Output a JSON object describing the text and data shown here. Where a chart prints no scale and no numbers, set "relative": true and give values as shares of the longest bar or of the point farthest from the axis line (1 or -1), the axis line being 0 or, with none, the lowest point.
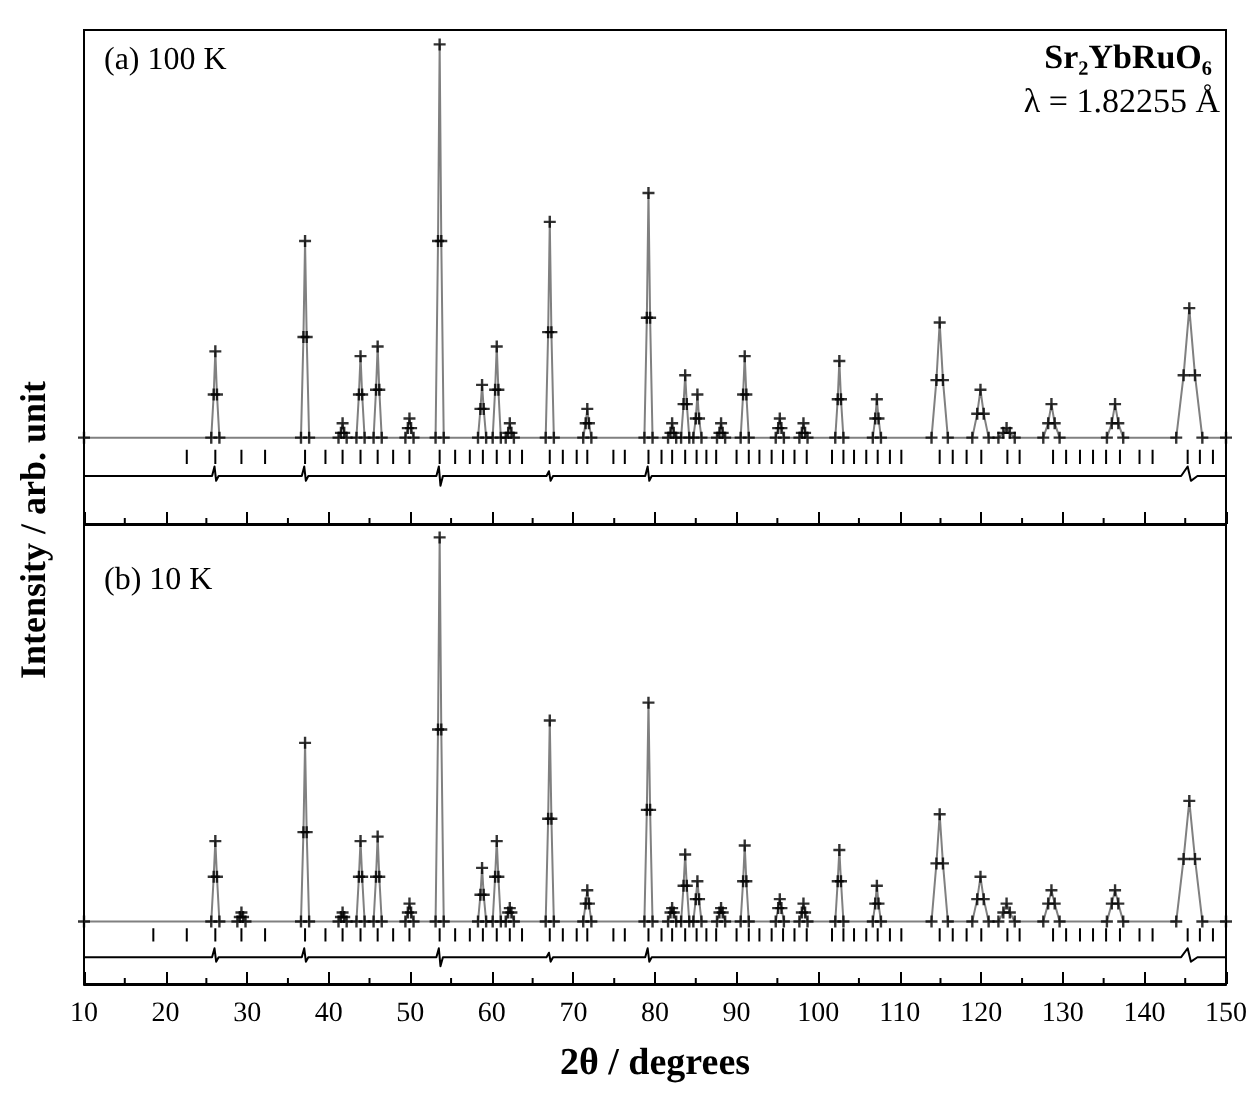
{
  "chart_data": [
    {
      "type": "line",
      "relative": true,
      "tick_labels": false,
      "ylabel": "Intensity / arb. unit",
      "annotations": [
        "(a) 100 K",
        "Sr₂YbRuO₆",
        "λ = 1.82255 Å"
      ],
      "xlim": [
        10,
        150
      ],
      "xticks": [
        10,
        20,
        30,
        40,
        50,
        60,
        70,
        80,
        90,
        100,
        110,
        120,
        130,
        140,
        150
      ],
      "x": [
        10,
        25.6,
        25.9,
        26.1,
        26.3,
        26.6,
        36.6,
        36.9,
        37.1,
        37.3,
        37.6,
        41.2,
        41.5,
        41.7,
        41.9,
        42.2,
        43.4,
        43.7,
        43.9,
        44.1,
        44.4,
        45.5,
        45.8,
        46.0,
        46.2,
        46.5,
        49.4,
        49.7,
        49.9,
        50.1,
        50.4,
        53.1,
        53.4,
        53.6,
        53.8,
        54.1,
        58.3,
        58.6,
        58.8,
        59.0,
        59.3,
        60.1,
        60.4,
        60.6,
        60.8,
        61.1,
        61.7,
        62.0,
        62.2,
        62.4,
        62.7,
        66.6,
        66.9,
        67.1,
        67.3,
        67.6,
        71.2,
        71.5,
        71.7,
        71.9,
        72.2,
        78.7,
        79.0,
        79.2,
        79.4,
        79.7,
        81.6,
        81.9,
        82.1,
        82.3,
        82.6,
        83.2,
        83.5,
        83.7,
        83.9,
        84.2,
        84.7,
        85.0,
        85.2,
        85.4,
        85.7,
        87.6,
        87.9,
        88.1,
        88.3,
        88.6,
        90.5,
        90.8,
        91.0,
        91.2,
        91.5,
        94.8,
        95.1,
        95.3,
        95.5,
        95.8,
        97.7,
        98.0,
        98.2,
        98.4,
        98.7,
        102.1,
        102.4,
        102.6,
        102.8,
        103.1,
        106.7,
        107.0,
        107.2,
        107.4,
        107.7,
        113.9,
        114.5,
        114.9,
        115.3,
        115.9,
        118.9,
        119.5,
        119.9,
        120.3,
        120.9,
        122.1,
        122.7,
        123.1,
        123.5,
        124.1,
        127.6,
        128.2,
        128.6,
        129.0,
        129.6,
        135.4,
        136.0,
        136.4,
        136.8,
        137.4,
        143.9,
        144.8,
        145.5,
        146.2,
        147.1,
        150
      ],
      "series": [
        {
          "type": "scatter",
          "marker": "cross",
          "color": "#000000",
          "values": [
            0.18,
            0.18,
            0.27,
            0.36,
            0.27,
            0.18,
            0.18,
            0.39,
            0.59,
            0.39,
            0.18,
            0.18,
            0.19,
            0.21,
            0.19,
            0.18,
            0.18,
            0.27,
            0.35,
            0.27,
            0.18,
            0.18,
            0.28,
            0.37,
            0.28,
            0.18,
            0.18,
            0.2,
            0.22,
            0.2,
            0.18,
            0.18,
            0.59,
            1,
            0.59,
            0.18,
            0.18,
            0.24,
            0.29,
            0.24,
            0.18,
            0.18,
            0.28,
            0.37,
            0.28,
            0.18,
            0.18,
            0.19,
            0.21,
            0.19,
            0.18,
            0.18,
            0.4,
            0.63,
            0.4,
            0.18,
            0.18,
            0.21,
            0.24,
            0.21,
            0.18,
            0.18,
            0.43,
            0.69,
            0.43,
            0.18,
            0.18,
            0.19,
            0.21,
            0.19,
            0.18,
            0.18,
            0.25,
            0.31,
            0.25,
            0.18,
            0.18,
            0.22,
            0.27,
            0.22,
            0.18,
            0.18,
            0.19,
            0.21,
            0.19,
            0.18,
            0.18,
            0.27,
            0.35,
            0.27,
            0.18,
            0.18,
            0.2,
            0.22,
            0.2,
            0.18,
            0.18,
            0.19,
            0.21,
            0.19,
            0.18,
            0.18,
            0.26,
            0.34,
            0.26,
            0.18,
            0.18,
            0.22,
            0.26,
            0.22,
            0.18,
            0.18,
            0.3,
            0.42,
            0.3,
            0.18,
            0.18,
            0.23,
            0.28,
            0.23,
            0.18,
            0.18,
            0.19,
            0.2,
            0.19,
            0.18,
            0.18,
            0.21,
            0.25,
            0.21,
            0.18,
            0.18,
            0.21,
            0.25,
            0.21,
            0.18,
            0.18,
            0.31,
            0.45,
            0.31,
            0.18,
            0.18
          ]
        },
        {
          "marker": "none",
          "color": "#808080",
          "values": [
            0.18,
            0.18,
            0.27,
            0.36,
            0.27,
            0.18,
            0.18,
            0.39,
            0.59,
            0.39,
            0.18,
            0.18,
            0.19,
            0.21,
            0.19,
            0.18,
            0.18,
            0.27,
            0.35,
            0.27,
            0.18,
            0.18,
            0.28,
            0.37,
            0.28,
            0.18,
            0.18,
            0.2,
            0.22,
            0.2,
            0.18,
            0.18,
            0.59,
            1,
            0.59,
            0.18,
            0.18,
            0.24,
            0.29,
            0.24,
            0.18,
            0.18,
            0.28,
            0.37,
            0.28,
            0.18,
            0.18,
            0.19,
            0.21,
            0.19,
            0.18,
            0.18,
            0.4,
            0.63,
            0.4,
            0.18,
            0.18,
            0.21,
            0.24,
            0.21,
            0.18,
            0.18,
            0.43,
            0.69,
            0.43,
            0.18,
            0.18,
            0.19,
            0.21,
            0.19,
            0.18,
            0.18,
            0.25,
            0.31,
            0.25,
            0.18,
            0.18,
            0.22,
            0.27,
            0.22,
            0.18,
            0.18,
            0.19,
            0.21,
            0.19,
            0.18,
            0.18,
            0.27,
            0.35,
            0.27,
            0.18,
            0.18,
            0.2,
            0.22,
            0.2,
            0.18,
            0.18,
            0.19,
            0.21,
            0.19,
            0.18,
            0.18,
            0.26,
            0.34,
            0.26,
            0.18,
            0.18,
            0.22,
            0.26,
            0.22,
            0.18,
            0.18,
            0.3,
            0.42,
            0.3,
            0.18,
            0.18,
            0.23,
            0.28,
            0.23,
            0.18,
            0.18,
            0.19,
            0.2,
            0.19,
            0.18,
            0.18,
            0.21,
            0.25,
            0.21,
            0.18,
            0.18,
            0.21,
            0.25,
            0.21,
            0.18,
            0.18,
            0.31,
            0.45,
            0.31,
            0.18,
            0.18
          ]
        },
        {
          "type": "line",
          "marker": "none",
          "color": "#000000",
          "x": [
            10,
            25.7,
            26.0,
            26.2,
            26.5,
            36.7,
            37.0,
            37.2,
            37.5,
            53.2,
            53.5,
            53.7,
            54.0,
            66.7,
            67.0,
            67.2,
            67.5,
            78.8,
            79.1,
            79.3,
            79.6,
            144.5,
            145.3,
            145.7,
            146.5,
            150
          ],
          "values": [
            0.1,
            0.1,
            0.12,
            0.09,
            0.1,
            0.1,
            0.12,
            0.09,
            0.1,
            0.1,
            0.12,
            0.08,
            0.1,
            0.1,
            0.11,
            0.09,
            0.1,
            0.1,
            0.12,
            0.09,
            0.1,
            0.1,
            0.12,
            0.09,
            0.1,
            0.1
          ]
        },
        {
          "type": "line",
          "marker": "none",
          "color": "#000000",
          "x": [
            22.6,
            22.6,
            null,
            26.1,
            26.1,
            null,
            29.3,
            29.3,
            null,
            32.2,
            32.2,
            null,
            37.1,
            37.1,
            null,
            39.6,
            39.6,
            null,
            41.7,
            41.7,
            null,
            43.9,
            43.9,
            null,
            46.0,
            46.0,
            null,
            47.9,
            47.9,
            null,
            49.9,
            49.9,
            null,
            53.6,
            53.6,
            null,
            55.5,
            55.5,
            null,
            57.3,
            57.3,
            null,
            58.9,
            58.9,
            null,
            60.6,
            60.6,
            null,
            62.2,
            62.2,
            null,
            63.7,
            63.7,
            null,
            67.1,
            67.1,
            null,
            68.7,
            68.7,
            null,
            70.4,
            70.4,
            null,
            71.7,
            71.7,
            null,
            74.9,
            74.9,
            null,
            76.3,
            76.3,
            null,
            79.2,
            79.2,
            null,
            80.8,
            80.8,
            null,
            82.1,
            82.1,
            null,
            83.7,
            83.7,
            null,
            85.1,
            85.1,
            null,
            86.3,
            86.3,
            null,
            87.5,
            87.5,
            null,
            90.0,
            90.0,
            null,
            91.5,
            91.5,
            null,
            92.8,
            92.8,
            null,
            94.3,
            94.3,
            null,
            95.7,
            95.7,
            null,
            97.1,
            97.1,
            null,
            98.6,
            98.6,
            null,
            101.7,
            101.7,
            null,
            103.1,
            103.1,
            null,
            104.4,
            104.4,
            null,
            105.9,
            105.9,
            null,
            107.3,
            107.3,
            null,
            108.8,
            108.8,
            null,
            110.2,
            110.2,
            null,
            114.9,
            114.9,
            null,
            116.5,
            116.5,
            null,
            118.2,
            118.2,
            null,
            120.0,
            120.0,
            null,
            123.2,
            123.2,
            null,
            124.7,
            124.7,
            null,
            128.8,
            128.8,
            null,
            130.4,
            130.4,
            null,
            132.1,
            132.1,
            null,
            133.7,
            133.7,
            null,
            135.3,
            135.3,
            null,
            137.0,
            137.0,
            null,
            139.4,
            139.4,
            null,
            141.0,
            141.0,
            null,
            145.3,
            145.3,
            null,
            146.8,
            146.8,
            null,
            148.4,
            148.4,
            null
          ],
          "values": [
            0.125,
            0.155,
            null,
            0.125,
            0.155,
            null,
            0.125,
            0.155,
            null,
            0.125,
            0.155,
            null,
            0.125,
            0.155,
            null,
            0.125,
            0.155,
            null,
            0.125,
            0.155,
            null,
            0.125,
            0.155,
            null,
            0.125,
            0.155,
            null,
            0.125,
            0.155,
            null,
            0.125,
            0.155,
            null,
            0.125,
            0.155,
            null,
            0.125,
            0.155,
            null,
            0.125,
            0.155,
            null,
            0.125,
            0.155,
            null,
            0.125,
            0.155,
            null,
            0.125,
            0.155,
            null,
            0.125,
            0.155,
            null,
            0.125,
            0.155,
            null,
            0.125,
            0.155,
            null,
            0.125,
            0.155,
            null,
            0.125,
            0.155,
            null,
            0.125,
            0.155,
            null,
            0.125,
            0.155,
            null,
            0.125,
            0.155,
            null,
            0.125,
            0.155,
            null,
            0.125,
            0.155,
            null,
            0.125,
            0.155,
            null,
            0.125,
            0.155,
            null,
            0.125,
            0.155,
            null,
            0.125,
            0.155,
            null,
            0.125,
            0.155,
            null,
            0.125,
            0.155,
            null,
            0.125,
            0.155,
            null,
            0.125,
            0.155,
            null,
            0.125,
            0.155,
            null,
            0.125,
            0.155,
            null,
            0.125,
            0.155,
            null,
            0.125,
            0.155,
            null,
            0.125,
            0.155,
            null,
            0.125,
            0.155,
            null,
            0.125,
            0.155,
            null,
            0.125,
            0.155,
            null,
            0.125,
            0.155,
            null,
            0.125,
            0.155,
            null,
            0.125,
            0.155,
            null,
            0.125,
            0.155,
            null,
            0.125,
            0.155,
            null,
            0.125,
            0.155,
            null,
            0.125,
            0.155,
            null,
            0.125,
            0.155,
            null,
            0.125,
            0.155,
            null,
            0.125,
            0.155,
            null,
            0.125,
            0.155,
            null,
            0.125,
            0.155,
            null,
            0.125,
            0.155,
            null,
            0.125,
            0.155,
            null,
            0.125,
            0.155,
            null,
            0.125,
            0.155,
            null,
            0.125,
            0.155,
            null,
            0.125,
            0.155,
            null,
            0.125,
            0.155,
            null
          ]
        }
      ]
    },
    {
      "type": "line",
      "relative": true,
      "tick_labels": "x",
      "xlabel": "2θ / degrees",
      "annotations": [
        "(b) 10 K"
      ],
      "xlim": [
        10,
        150
      ],
      "xticks": [
        10,
        20,
        30,
        40,
        50,
        60,
        70,
        80,
        90,
        100,
        110,
        120,
        130,
        140,
        150
      ],
      "x": [
        10,
        25.6,
        25.9,
        26.1,
        26.3,
        26.6,
        28.8,
        29.1,
        29.3,
        29.5,
        29.8,
        36.6,
        36.9,
        37.1,
        37.3,
        37.6,
        41.2,
        41.5,
        41.7,
        41.9,
        42.2,
        43.4,
        43.7,
        43.9,
        44.1,
        44.4,
        45.5,
        45.8,
        46.0,
        46.2,
        46.5,
        49.4,
        49.7,
        49.9,
        50.1,
        50.4,
        53.1,
        53.4,
        53.6,
        53.8,
        54.1,
        58.3,
        58.6,
        58.8,
        59.0,
        59.3,
        60.1,
        60.4,
        60.6,
        60.8,
        61.1,
        61.7,
        62.0,
        62.2,
        62.4,
        62.7,
        66.6,
        66.9,
        67.1,
        67.3,
        67.6,
        71.2,
        71.5,
        71.7,
        71.9,
        72.2,
        78.7,
        79.0,
        79.2,
        79.4,
        79.7,
        81.6,
        81.9,
        82.1,
        82.3,
        82.6,
        83.2,
        83.5,
        83.7,
        83.9,
        84.2,
        84.7,
        85.0,
        85.2,
        85.4,
        85.7,
        87.6,
        87.9,
        88.1,
        88.3,
        88.6,
        90.5,
        90.8,
        91.0,
        91.2,
        91.5,
        94.8,
        95.1,
        95.3,
        95.5,
        95.8,
        97.7,
        98.0,
        98.2,
        98.4,
        98.7,
        102.1,
        102.4,
        102.6,
        102.8,
        103.1,
        106.7,
        107.0,
        107.2,
        107.4,
        107.7,
        113.9,
        114.5,
        114.9,
        115.3,
        115.9,
        118.9,
        119.5,
        119.9,
        120.3,
        120.9,
        122.1,
        122.7,
        123.1,
        123.5,
        124.1,
        127.6,
        128.2,
        128.6,
        129.0,
        129.6,
        135.4,
        136.0,
        136.4,
        136.8,
        137.4,
        143.9,
        144.8,
        145.5,
        146.2,
        147.1,
        150
      ],
      "series": [
        {
          "type": "scatter",
          "marker": "cross",
          "color": "#000000",
          "values": [
            0.14,
            0.14,
            0.24,
            0.32,
            0.24,
            0.14,
            0.14,
            0.15,
            0.16,
            0.15,
            0.14,
            0.14,
            0.34,
            0.54,
            0.34,
            0.14,
            0.14,
            0.15,
            0.16,
            0.15,
            0.14,
            0.14,
            0.24,
            0.32,
            0.24,
            0.14,
            0.14,
            0.24,
            0.33,
            0.24,
            0.14,
            0.14,
            0.16,
            0.18,
            0.16,
            0.14,
            0.14,
            0.57,
            1,
            0.57,
            0.14,
            0.14,
            0.2,
            0.26,
            0.2,
            0.14,
            0.14,
            0.24,
            0.32,
            0.24,
            0.14,
            0.14,
            0.16,
            0.17,
            0.16,
            0.14,
            0.14,
            0.37,
            0.59,
            0.37,
            0.14,
            0.14,
            0.18,
            0.21,
            0.18,
            0.14,
            0.14,
            0.39,
            0.63,
            0.39,
            0.14,
            0.14,
            0.16,
            0.17,
            0.16,
            0.14,
            0.14,
            0.22,
            0.29,
            0.22,
            0.14,
            0.14,
            0.19,
            0.23,
            0.19,
            0.14,
            0.14,
            0.16,
            0.17,
            0.16,
            0.14,
            0.14,
            0.23,
            0.31,
            0.23,
            0.14,
            0.14,
            0.17,
            0.19,
            0.17,
            0.14,
            0.14,
            0.16,
            0.18,
            0.16,
            0.14,
            0.14,
            0.23,
            0.3,
            0.23,
            0.14,
            0.14,
            0.18,
            0.22,
            0.18,
            0.14,
            0.14,
            0.27,
            0.38,
            0.27,
            0.14,
            0.14,
            0.19,
            0.24,
            0.19,
            0.14,
            0.14,
            0.16,
            0.18,
            0.16,
            0.14,
            0.14,
            0.18,
            0.21,
            0.18,
            0.14,
            0.14,
            0.18,
            0.21,
            0.18,
            0.14,
            0.14,
            0.28,
            0.41,
            0.28,
            0.14,
            0.14
          ]
        },
        {
          "marker": "none",
          "color": "#808080",
          "values": [
            0.14,
            0.14,
            0.24,
            0.32,
            0.24,
            0.14,
            0.14,
            0.15,
            0.16,
            0.15,
            0.14,
            0.14,
            0.34,
            0.54,
            0.34,
            0.14,
            0.14,
            0.15,
            0.16,
            0.15,
            0.14,
            0.14,
            0.24,
            0.32,
            0.24,
            0.14,
            0.14,
            0.24,
            0.33,
            0.24,
            0.14,
            0.14,
            0.16,
            0.18,
            0.16,
            0.14,
            0.14,
            0.57,
            1,
            0.57,
            0.14,
            0.14,
            0.2,
            0.26,
            0.2,
            0.14,
            0.14,
            0.24,
            0.32,
            0.24,
            0.14,
            0.14,
            0.16,
            0.17,
            0.16,
            0.14,
            0.14,
            0.37,
            0.59,
            0.37,
            0.14,
            0.14,
            0.18,
            0.21,
            0.18,
            0.14,
            0.14,
            0.39,
            0.63,
            0.39,
            0.14,
            0.14,
            0.16,
            0.17,
            0.16,
            0.14,
            0.14,
            0.22,
            0.29,
            0.22,
            0.14,
            0.14,
            0.19,
            0.23,
            0.19,
            0.14,
            0.14,
            0.16,
            0.17,
            0.16,
            0.14,
            0.14,
            0.23,
            0.31,
            0.23,
            0.14,
            0.14,
            0.17,
            0.19,
            0.17,
            0.14,
            0.14,
            0.16,
            0.18,
            0.16,
            0.14,
            0.14,
            0.23,
            0.3,
            0.23,
            0.14,
            0.14,
            0.18,
            0.22,
            0.18,
            0.14,
            0.14,
            0.27,
            0.38,
            0.27,
            0.14,
            0.14,
            0.19,
            0.24,
            0.19,
            0.14,
            0.14,
            0.16,
            0.18,
            0.16,
            0.14,
            0.14,
            0.18,
            0.21,
            0.18,
            0.14,
            0.14,
            0.18,
            0.21,
            0.18,
            0.14,
            0.14,
            0.28,
            0.41,
            0.28,
            0.14,
            0.14
          ]
        },
        {
          "type": "line",
          "marker": "none",
          "color": "#000000",
          "x": [
            10,
            25.7,
            26.0,
            26.2,
            26.5,
            36.7,
            37.0,
            37.2,
            37.5,
            53.2,
            53.5,
            53.7,
            54.0,
            66.7,
            67.0,
            67.2,
            67.5,
            78.8,
            79.1,
            79.3,
            79.6,
            144.5,
            145.3,
            145.7,
            146.5,
            150
          ],
          "values": [
            0.06,
            0.06,
            0.08,
            0.05,
            0.06,
            0.06,
            0.08,
            0.05,
            0.06,
            0.06,
            0.08,
            0.04,
            0.06,
            0.06,
            0.07,
            0.05,
            0.06,
            0.06,
            0.08,
            0.05,
            0.06,
            0.06,
            0.08,
            0.05,
            0.06,
            0.06
          ]
        },
        {
          "type": "line",
          "marker": "none",
          "color": "#000000",
          "x": [
            18.5,
            18.5,
            null,
            22.6,
            22.6,
            null,
            26.1,
            26.1,
            null,
            29.3,
            29.3,
            null,
            32.2,
            32.2,
            null,
            37.1,
            37.1,
            null,
            39.6,
            39.6,
            null,
            41.7,
            41.7,
            null,
            43.9,
            43.9,
            null,
            46.0,
            46.0,
            null,
            47.9,
            47.9,
            null,
            49.9,
            49.9,
            null,
            53.6,
            53.6,
            null,
            55.5,
            55.5,
            null,
            57.3,
            57.3,
            null,
            58.9,
            58.9,
            null,
            60.6,
            60.6,
            null,
            62.2,
            62.2,
            null,
            63.7,
            63.7,
            null,
            67.1,
            67.1,
            null,
            68.7,
            68.7,
            null,
            70.4,
            70.4,
            null,
            71.7,
            71.7,
            null,
            74.9,
            74.9,
            null,
            76.3,
            76.3,
            null,
            79.2,
            79.2,
            null,
            80.8,
            80.8,
            null,
            82.1,
            82.1,
            null,
            83.7,
            83.7,
            null,
            85.1,
            85.1,
            null,
            86.3,
            86.3,
            null,
            87.5,
            87.5,
            null,
            90.0,
            90.0,
            null,
            91.5,
            91.5,
            null,
            92.8,
            92.8,
            null,
            94.3,
            94.3,
            null,
            95.7,
            95.7,
            null,
            97.1,
            97.1,
            null,
            98.6,
            98.6,
            null,
            101.7,
            101.7,
            null,
            103.1,
            103.1,
            null,
            104.4,
            104.4,
            null,
            105.9,
            105.9,
            null,
            107.3,
            107.3,
            null,
            108.8,
            108.8,
            null,
            110.2,
            110.2,
            null,
            114.9,
            114.9,
            null,
            116.5,
            116.5,
            null,
            118.2,
            118.2,
            null,
            120.0,
            120.0,
            null,
            123.2,
            123.2,
            null,
            124.7,
            124.7,
            null,
            128.8,
            128.8,
            null,
            130.4,
            130.4,
            null,
            132.1,
            132.1,
            null,
            133.7,
            133.7,
            null,
            135.3,
            135.3,
            null,
            137.0,
            137.0,
            null,
            139.4,
            139.4,
            null,
            141.0,
            141.0,
            null,
            145.3,
            145.3,
            null,
            146.8,
            146.8,
            null,
            148.4,
            148.4,
            null
          ],
          "values": [
            0.095,
            0.125,
            null,
            0.095,
            0.125,
            null,
            0.095,
            0.125,
            null,
            0.095,
            0.125,
            null,
            0.095,
            0.125,
            null,
            0.095,
            0.125,
            null,
            0.095,
            0.125,
            null,
            0.095,
            0.125,
            null,
            0.095,
            0.125,
            null,
            0.095,
            0.125,
            null,
            0.095,
            0.125,
            null,
            0.095,
            0.125,
            null,
            0.095,
            0.125,
            null,
            0.095,
            0.125,
            null,
            0.095,
            0.125,
            null,
            0.095,
            0.125,
            null,
            0.095,
            0.125,
            null,
            0.095,
            0.125,
            null,
            0.095,
            0.125,
            null,
            0.095,
            0.125,
            null,
            0.095,
            0.125,
            null,
            0.095,
            0.125,
            null,
            0.095,
            0.125,
            null,
            0.095,
            0.125,
            null,
            0.095,
            0.125,
            null,
            0.095,
            0.125,
            null,
            0.095,
            0.125,
            null,
            0.095,
            0.125,
            null,
            0.095,
            0.125,
            null,
            0.095,
            0.125,
            null,
            0.095,
            0.125,
            null,
            0.095,
            0.125,
            null,
            0.095,
            0.125,
            null,
            0.095,
            0.125,
            null,
            0.095,
            0.125,
            null,
            0.095,
            0.125,
            null,
            0.095,
            0.125,
            null,
            0.095,
            0.125,
            null,
            0.095,
            0.125,
            null,
            0.095,
            0.125,
            null,
            0.095,
            0.125,
            null,
            0.095,
            0.125,
            null,
            0.095,
            0.125,
            null,
            0.095,
            0.125,
            null,
            0.095,
            0.125,
            null,
            0.095,
            0.125,
            null,
            0.095,
            0.125,
            null,
            0.095,
            0.125,
            null,
            0.095,
            0.125,
            null,
            0.095,
            0.125,
            null,
            0.095,
            0.125,
            null,
            0.095,
            0.125,
            null,
            0.095,
            0.125,
            null,
            0.095,
            0.125,
            null,
            0.095,
            0.125,
            null,
            0.095,
            0.125,
            null,
            0.095,
            0.125,
            null,
            0.095,
            0.125,
            null,
            0.095,
            0.125,
            null,
            0.095,
            0.125,
            null,
            0.095,
            0.125,
            null,
            0.095,
            0.125,
            null,
            0.095,
            0.125,
            null
          ]
        }
      ]
    }
  ]
}
